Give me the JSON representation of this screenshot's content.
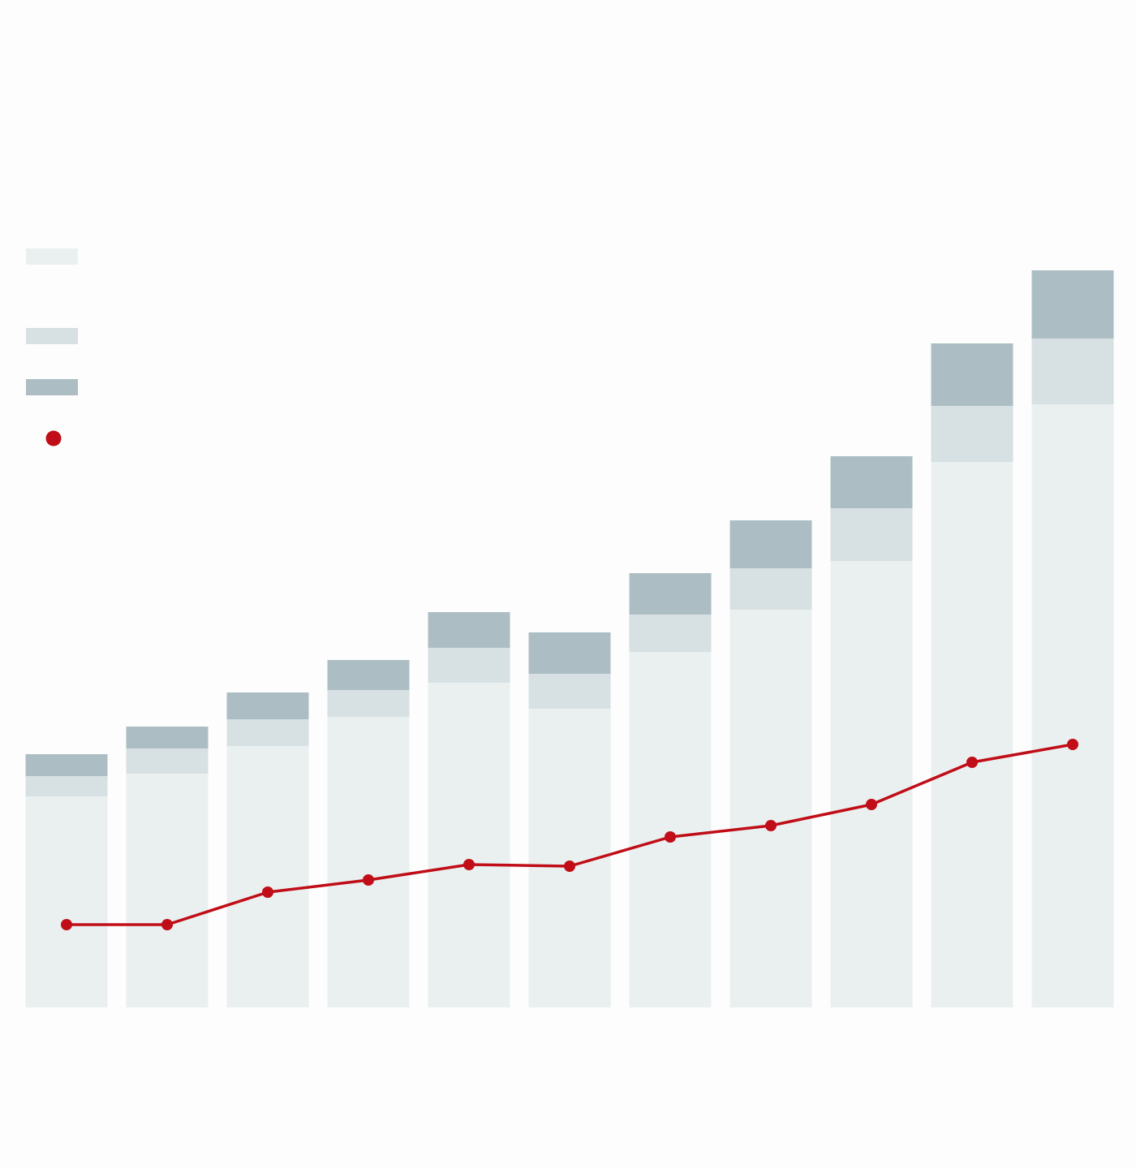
{
  "chart_data": {
    "type": "bar",
    "stacked": true,
    "categories": [
      "",
      "",
      "",
      "",
      "",
      "",
      "",
      "",
      "",
      "",
      ""
    ],
    "series": [
      {
        "kind": "bar",
        "color": "#eaf0f0",
        "values": [
          260,
          288,
          322,
          358,
          400,
          368,
          438,
          490,
          550,
          672,
          743
        ]
      },
      {
        "kind": "bar",
        "color": "#d7e0e2",
        "values": [
          25,
          31,
          33,
          33,
          43,
          43,
          46,
          51,
          65,
          69,
          81
        ]
      },
      {
        "kind": "bar",
        "color": "#acbec4",
        "values": [
          27,
          27,
          33,
          37,
          44,
          51,
          51,
          59,
          64,
          77,
          84
        ]
      },
      {
        "kind": "line",
        "color": "#c00d17",
        "values": [
          102,
          102,
          142,
          157,
          176,
          174,
          210,
          224,
          250,
          302,
          324
        ]
      }
    ],
    "ylim": [
      0,
      1000
    ],
    "grid": false,
    "legend": {
      "position": "top-left",
      "entries": [
        {
          "color": "#eaf0f0",
          "marker": "rect"
        },
        {
          "color": "#d7e0e2",
          "marker": "rect"
        },
        {
          "color": "#acbec4",
          "marker": "rect"
        },
        {
          "color": "#c00d17",
          "marker": "dot"
        }
      ]
    }
  }
}
